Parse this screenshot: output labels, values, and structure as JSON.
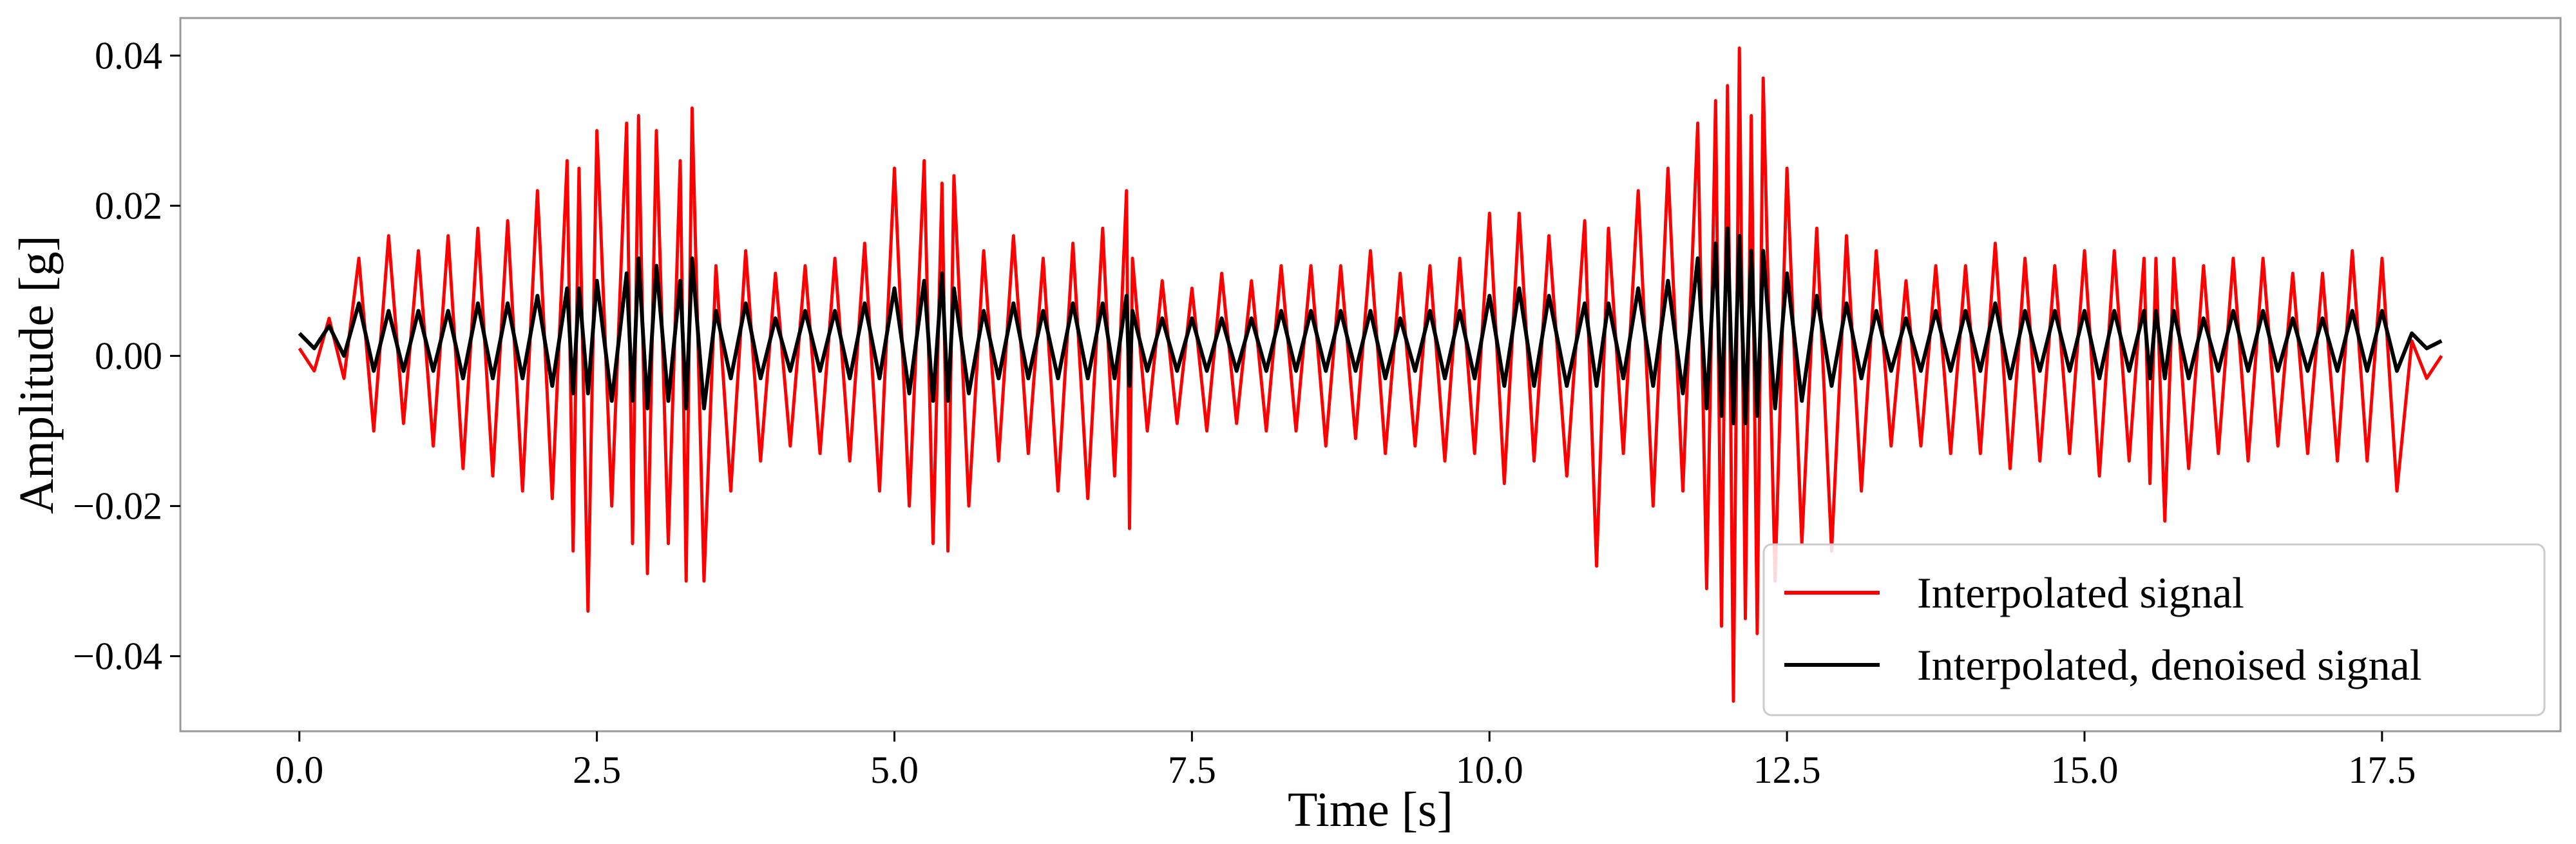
{
  "chart_data": {
    "type": "line",
    "xlabel": "Time [s]",
    "ylabel": "Amplitude [g]",
    "xlim": [
      -1.0,
      19.0
    ],
    "ylim": [
      -0.05,
      0.045
    ],
    "x_ticks": [
      0.0,
      2.5,
      5.0,
      7.5,
      10.0,
      12.5,
      15.0,
      17.5
    ],
    "x_tick_labels": [
      "0.0",
      "2.5",
      "5.0",
      "7.5",
      "10.0",
      "12.5",
      "15.0",
      "17.5"
    ],
    "y_ticks": [
      -0.04,
      -0.02,
      0.0,
      0.02,
      0.04
    ],
    "y_tick_labels": [
      "−0.04",
      "−0.02",
      "0.00",
      "0.02",
      "0.04"
    ],
    "grid": false,
    "legend_position": "lower-right",
    "series": [
      {
        "name": "Interpolated signal",
        "color": "#ff0000",
        "x": [
          0.0,
          0.25,
          0.5,
          0.75,
          1.0,
          1.25,
          1.5,
          1.75,
          2.0,
          2.25,
          2.35,
          2.5,
          2.75,
          2.85,
          3.0,
          3.2,
          3.3,
          3.5,
          3.75,
          4.0,
          4.25,
          4.5,
          4.75,
          5.0,
          5.25,
          5.4,
          5.5,
          5.75,
          6.0,
          6.25,
          6.5,
          6.75,
          6.95,
          7.0,
          7.25,
          7.5,
          7.75,
          8.0,
          8.25,
          8.5,
          8.75,
          9.0,
          9.25,
          9.5,
          9.75,
          10.0,
          10.25,
          10.5,
          10.8,
          11.0,
          11.25,
          11.5,
          11.75,
          11.9,
          12.0,
          12.1,
          12.2,
          12.3,
          12.5,
          12.75,
          13.0,
          13.25,
          13.5,
          13.75,
          14.0,
          14.25,
          14.5,
          14.75,
          15.0,
          15.25,
          15.5,
          15.6,
          15.75,
          16.0,
          16.25,
          16.5,
          16.75,
          17.0,
          17.25,
          17.5,
          17.75,
          18.0
        ],
        "max": [
          0.001,
          0.005,
          0.013,
          0.016,
          0.014,
          0.016,
          0.017,
          0.018,
          0.022,
          0.026,
          0.025,
          0.03,
          0.031,
          0.032,
          0.03,
          0.026,
          0.033,
          0.012,
          0.014,
          0.011,
          0.012,
          0.013,
          0.015,
          0.025,
          0.026,
          0.023,
          0.024,
          0.014,
          0.016,
          0.013,
          0.015,
          0.017,
          0.022,
          0.013,
          0.01,
          0.009,
          0.011,
          0.01,
          0.012,
          0.012,
          0.012,
          0.014,
          0.011,
          0.012,
          0.013,
          0.019,
          0.019,
          0.016,
          0.018,
          0.017,
          0.022,
          0.025,
          0.031,
          0.034,
          0.036,
          0.041,
          0.032,
          0.037,
          0.025,
          0.017,
          0.016,
          0.014,
          0.01,
          0.012,
          0.012,
          0.015,
          0.013,
          0.012,
          0.014,
          0.014,
          0.013,
          0.013,
          0.013,
          0.012,
          0.013,
          0.013,
          0.011,
          0.011,
          0.014,
          0.013,
          0.002,
          0.0
        ],
        "min": [
          -0.002,
          -0.003,
          -0.01,
          -0.009,
          -0.012,
          -0.015,
          -0.016,
          -0.018,
          -0.019,
          -0.026,
          -0.034,
          -0.02,
          -0.025,
          -0.029,
          -0.025,
          -0.03,
          -0.03,
          -0.018,
          -0.014,
          -0.012,
          -0.013,
          -0.014,
          -0.018,
          -0.02,
          -0.025,
          -0.026,
          -0.02,
          -0.014,
          -0.013,
          -0.018,
          -0.019,
          -0.016,
          -0.023,
          -0.01,
          -0.009,
          -0.01,
          -0.009,
          -0.01,
          -0.01,
          -0.012,
          -0.011,
          -0.013,
          -0.012,
          -0.014,
          -0.013,
          -0.017,
          -0.014,
          -0.016,
          -0.028,
          -0.013,
          -0.02,
          -0.018,
          -0.031,
          -0.036,
          -0.046,
          -0.035,
          -0.037,
          -0.03,
          -0.025,
          -0.026,
          -0.018,
          -0.012,
          -0.012,
          -0.013,
          -0.013,
          -0.015,
          -0.014,
          -0.013,
          -0.016,
          -0.014,
          -0.017,
          -0.022,
          -0.015,
          -0.013,
          -0.014,
          -0.012,
          -0.013,
          -0.014,
          -0.014,
          -0.018,
          -0.003,
          0.0
        ]
      },
      {
        "name": "Interpolated, denoised signal",
        "color": "#000000",
        "x": [
          0.0,
          0.25,
          0.5,
          0.75,
          1.0,
          1.25,
          1.5,
          1.75,
          2.0,
          2.25,
          2.35,
          2.5,
          2.75,
          2.85,
          3.0,
          3.2,
          3.3,
          3.5,
          3.75,
          4.0,
          4.25,
          4.5,
          4.75,
          5.0,
          5.25,
          5.4,
          5.5,
          5.75,
          6.0,
          6.25,
          6.5,
          6.75,
          6.95,
          7.0,
          7.25,
          7.5,
          7.75,
          8.0,
          8.25,
          8.5,
          8.75,
          9.0,
          9.25,
          9.5,
          9.75,
          10.0,
          10.25,
          10.5,
          10.8,
          11.0,
          11.25,
          11.5,
          11.75,
          11.9,
          12.0,
          12.1,
          12.2,
          12.3,
          12.5,
          12.75,
          13.0,
          13.25,
          13.5,
          13.75,
          14.0,
          14.25,
          14.5,
          14.75,
          15.0,
          15.25,
          15.5,
          15.6,
          15.75,
          16.0,
          16.25,
          16.5,
          16.75,
          17.0,
          17.25,
          17.5,
          17.75,
          18.0
        ],
        "max": [
          0.003,
          0.004,
          0.007,
          0.006,
          0.006,
          0.006,
          0.007,
          0.007,
          0.008,
          0.009,
          0.009,
          0.01,
          0.011,
          0.013,
          0.012,
          0.01,
          0.013,
          0.006,
          0.007,
          0.005,
          0.006,
          0.006,
          0.007,
          0.009,
          0.01,
          0.011,
          0.009,
          0.006,
          0.007,
          0.006,
          0.007,
          0.007,
          0.008,
          0.006,
          0.005,
          0.005,
          0.005,
          0.005,
          0.006,
          0.006,
          0.006,
          0.006,
          0.005,
          0.006,
          0.006,
          0.008,
          0.009,
          0.008,
          0.007,
          0.007,
          0.009,
          0.01,
          0.013,
          0.015,
          0.017,
          0.016,
          0.014,
          0.014,
          0.011,
          0.008,
          0.007,
          0.006,
          0.005,
          0.006,
          0.006,
          0.007,
          0.006,
          0.006,
          0.006,
          0.006,
          0.006,
          0.006,
          0.006,
          0.005,
          0.006,
          0.006,
          0.005,
          0.005,
          0.006,
          0.006,
          0.003,
          0.002
        ],
        "min": [
          0.001,
          0.0,
          -0.002,
          -0.002,
          -0.002,
          -0.003,
          -0.003,
          -0.003,
          -0.004,
          -0.005,
          -0.005,
          -0.006,
          -0.006,
          -0.007,
          -0.006,
          -0.007,
          -0.007,
          -0.003,
          -0.003,
          -0.002,
          -0.002,
          -0.003,
          -0.003,
          -0.005,
          -0.006,
          -0.006,
          -0.005,
          -0.003,
          -0.003,
          -0.003,
          -0.003,
          -0.003,
          -0.004,
          -0.002,
          -0.002,
          -0.002,
          -0.002,
          -0.002,
          -0.002,
          -0.002,
          -0.002,
          -0.003,
          -0.002,
          -0.003,
          -0.003,
          -0.004,
          -0.004,
          -0.004,
          -0.004,
          -0.003,
          -0.004,
          -0.005,
          -0.007,
          -0.008,
          -0.009,
          -0.009,
          -0.008,
          -0.007,
          -0.006,
          -0.004,
          -0.003,
          -0.002,
          -0.002,
          -0.002,
          -0.002,
          -0.003,
          -0.002,
          -0.002,
          -0.003,
          -0.002,
          -0.003,
          -0.003,
          -0.003,
          -0.002,
          -0.002,
          -0.002,
          -0.002,
          -0.002,
          -0.002,
          -0.002,
          0.001,
          0.002
        ]
      }
    ]
  }
}
